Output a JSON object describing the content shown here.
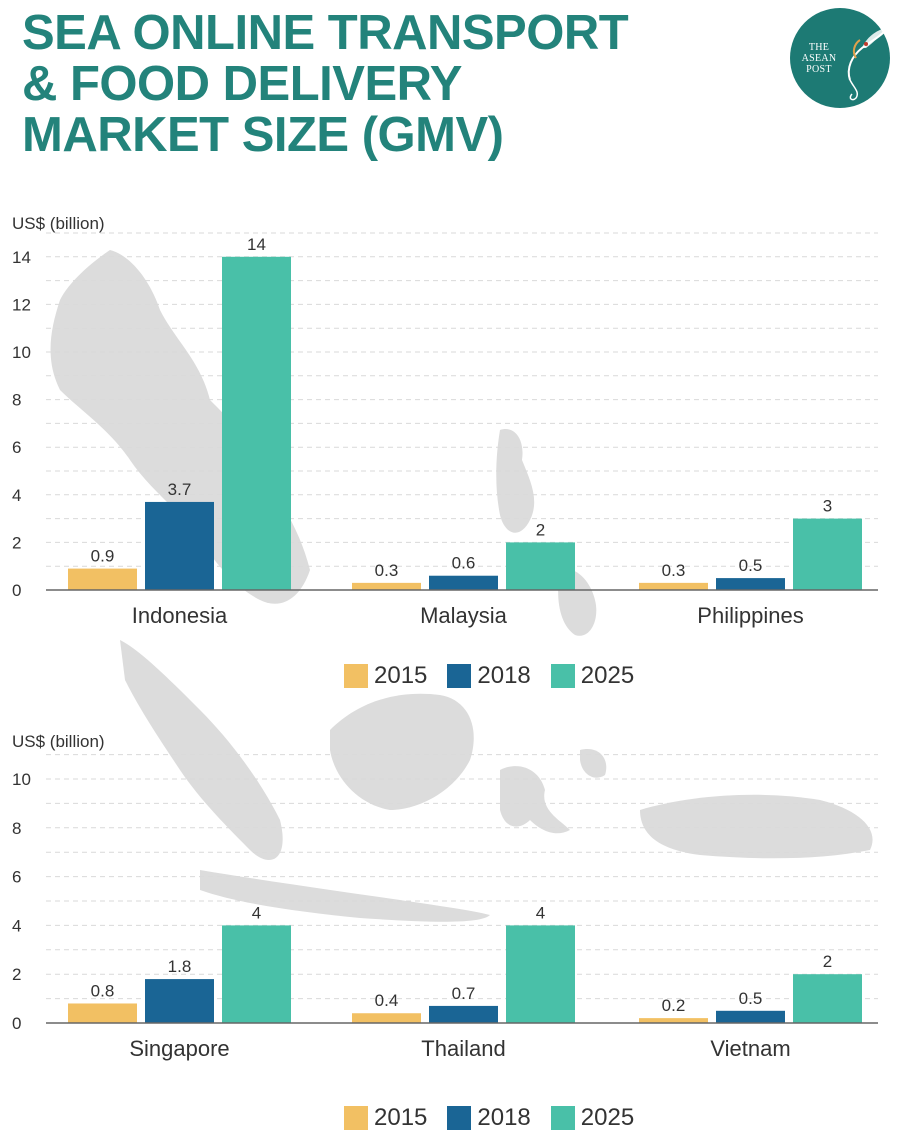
{
  "title_lines": [
    "SEA ONLINE TRANSPORT",
    "& FOOD DELIVERY",
    "MARKET SIZE (GMV)"
  ],
  "logo": {
    "lines": [
      "THE",
      "ASEAN",
      "POST"
    ],
    "color": "#1d7a74"
  },
  "colors": {
    "2015": "#f2c063",
    "2018": "#1a6595",
    "2025": "#49c0a8",
    "title": "#23837b",
    "map": "#dcdcdc"
  },
  "chart_data": [
    {
      "type": "bar",
      "ylabel": "US$ (billion)",
      "categories": [
        "Indonesia",
        "Malaysia",
        "Philippines"
      ],
      "series": [
        {
          "name": "2015",
          "values": [
            0.9,
            0.3,
            0.3
          ],
          "labels": [
            "0.9",
            "0.3",
            "0.3"
          ]
        },
        {
          "name": "2018",
          "values": [
            3.7,
            0.6,
            0.5
          ],
          "labels": [
            "3.7",
            "0.6",
            "0.5"
          ]
        },
        {
          "name": "2025",
          "values": [
            14,
            2,
            3
          ],
          "labels": [
            "14",
            "2",
            "3"
          ]
        }
      ],
      "yticks": [
        0,
        2,
        4,
        6,
        8,
        10,
        12,
        14
      ],
      "ylim": [
        0,
        15
      ],
      "grid": true,
      "legend": "bottom-center"
    },
    {
      "type": "bar",
      "ylabel": "US$ (billion)",
      "categories": [
        "Singapore",
        "Thailand",
        "Vietnam"
      ],
      "series": [
        {
          "name": "2015",
          "values": [
            0.8,
            0.4,
            0.2
          ],
          "labels": [
            "0.8",
            "0.4",
            "0.2"
          ]
        },
        {
          "name": "2018",
          "values": [
            1.8,
            0.7,
            0.5
          ],
          "labels": [
            "1.8",
            "0.7",
            "0.5"
          ]
        },
        {
          "name": "2025",
          "values": [
            4,
            4,
            2
          ],
          "labels": [
            "4",
            "4",
            "2"
          ]
        }
      ],
      "yticks": [
        0,
        2,
        4,
        6,
        8,
        10
      ],
      "ylim": [
        0,
        11
      ],
      "grid": true,
      "legend": "bottom-center"
    }
  ]
}
